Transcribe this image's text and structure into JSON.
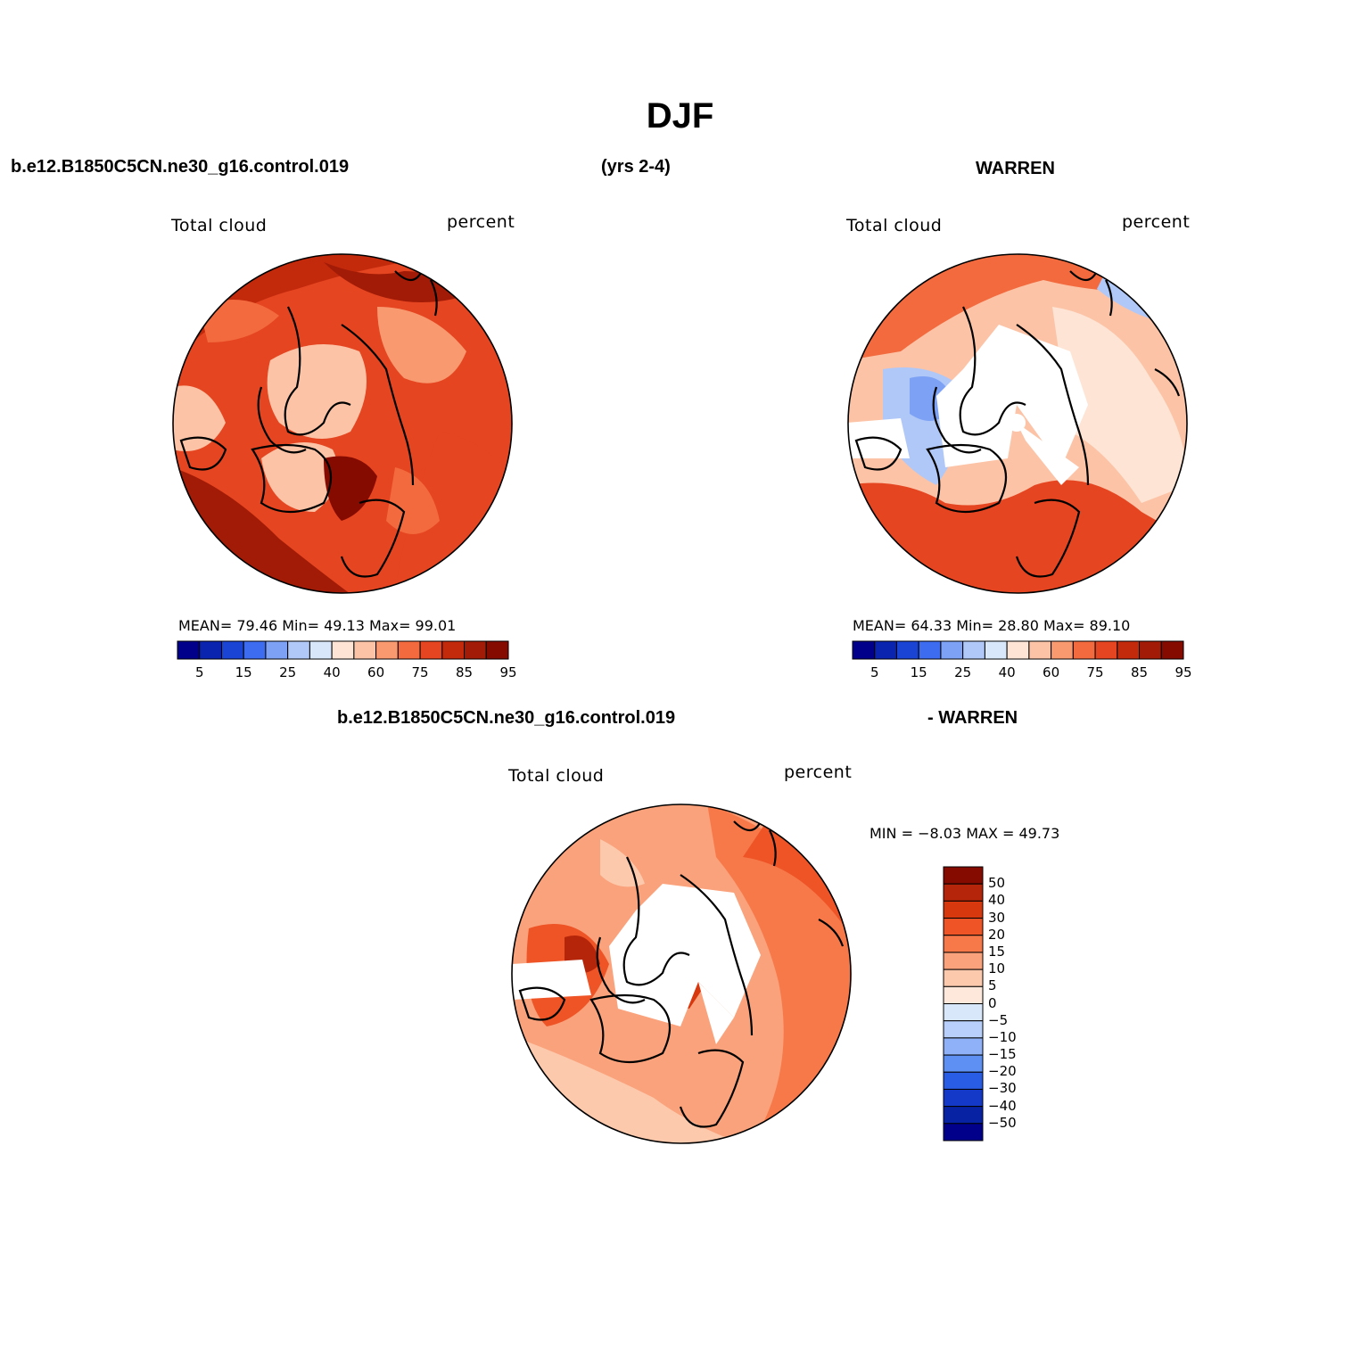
{
  "figure": {
    "title": "DJF",
    "case_name": "b.e12.B1850C5CN.ne30_g16.control.019",
    "years": "(yrs 2-4)",
    "obs_name": "WARREN",
    "diff_case": "b.e12.B1850C5CN.ne30_g16.control.019",
    "diff_obs": "- WARREN"
  },
  "panels": [
    {
      "variable": "Total cloud",
      "units": "percent",
      "stats_text": "MEAN=  79.46  Min=  49.13  Max=  99.01",
      "colorbar_ticks": [
        "5",
        "15",
        "25",
        "40",
        "60",
        "75",
        "85",
        "95"
      ]
    },
    {
      "variable": "Total cloud",
      "units": "percent",
      "stats_text": "MEAN=  64.33  Min=  28.80  Max=  89.10",
      "colorbar_ticks": [
        "5",
        "15",
        "25",
        "40",
        "60",
        "75",
        "85",
        "95"
      ]
    },
    {
      "variable": "Total cloud",
      "units": "percent",
      "stats_text": "MIN =  −8.03 MAX =  49.73",
      "colorbar_ticks": [
        "50",
        "40",
        "30",
        "20",
        "15",
        "10",
        "5",
        "0",
        "−5",
        "−10",
        "−15",
        "−20",
        "−30",
        "−40",
        "−50"
      ]
    }
  ],
  "colors": {
    "abs_scale": [
      "#00008b",
      "#0a24b0",
      "#1a44d4",
      "#3e6cf0",
      "#7da2f5",
      "#b0c8f8",
      "#d9e7fb",
      "#fde4d4",
      "#fcc3a6",
      "#f8996f",
      "#f26a3e",
      "#e54520",
      "#c32a0c",
      "#a11b06",
      "#850a00"
    ],
    "diff_scale": [
      "#850a00",
      "#b52509",
      "#d8380e",
      "#ee5426",
      "#f7794a",
      "#faa27b",
      "#fdc9ad",
      "#fde8db",
      "#d9e7fb",
      "#b7cffa",
      "#8eb1f7",
      "#5e8ff3",
      "#2a5de6",
      "#1438c8",
      "#0822a4",
      "#00008b"
    ]
  }
}
